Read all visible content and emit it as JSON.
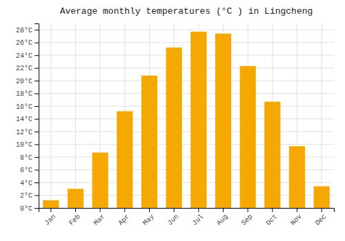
{
  "chart_data": {
    "type": "bar",
    "title": "Average monthly temperatures (°C ) in Lingcheng",
    "categories": [
      "Jan",
      "Feb",
      "Mar",
      "Apr",
      "May",
      "Jun",
      "Jul",
      "Aug",
      "Sep",
      "Oct",
      "Nov",
      "Dec"
    ],
    "values": [
      1.2,
      3.0,
      8.7,
      15.2,
      20.8,
      25.2,
      27.7,
      27.4,
      22.3,
      16.7,
      9.7,
      3.4
    ],
    "color": "#F5A800",
    "ylim": [
      0,
      29
    ],
    "yticks": [
      {
        "value": 0,
        "label": "0°C"
      },
      {
        "value": 2,
        "label": "2°C"
      },
      {
        "value": 4,
        "label": "4°C"
      },
      {
        "value": 6,
        "label": "6°C"
      },
      {
        "value": 8,
        "label": "8°C"
      },
      {
        "value": 10,
        "label": "10°C"
      },
      {
        "value": 12,
        "label": "12°C"
      },
      {
        "value": 14,
        "label": "14°C"
      },
      {
        "value": 16,
        "label": "16°C"
      },
      {
        "value": 18,
        "label": "18°C"
      },
      {
        "value": 20,
        "label": "20°C"
      },
      {
        "value": 22,
        "label": "22°C"
      },
      {
        "value": 24,
        "label": "24°C"
      },
      {
        "value": 26,
        "label": "26°C"
      },
      {
        "value": 28,
        "label": "28°C"
      }
    ],
    "grid": true
  }
}
